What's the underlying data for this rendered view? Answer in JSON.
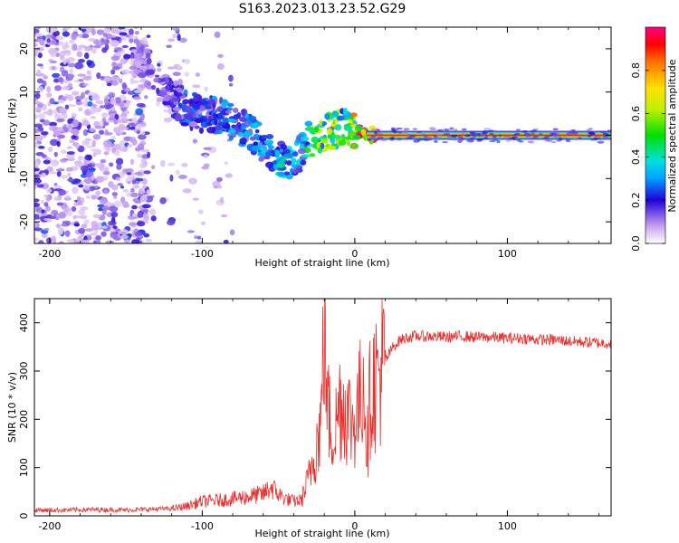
{
  "title": "S163.2023.013.23.52.G29",
  "colorbar": {
    "label": "Normalized spectral amplitude",
    "ticks": [
      "0.0",
      "0.2",
      "0.4",
      "0.6",
      "0.8"
    ],
    "tick_values": [
      0.0,
      0.2,
      0.4,
      0.6,
      0.8
    ],
    "range": [
      0.0,
      1.0
    ]
  },
  "chart_data": [
    {
      "type": "heatmap",
      "xlabel": "Height of straight line (km)",
      "ylabel": "Frequency (Hz)",
      "xlim": [
        -210,
        168
      ],
      "ylim": [
        -25,
        25
      ],
      "xticks": [
        -200,
        -100,
        0,
        100
      ],
      "yticks": [
        -20,
        -10,
        0,
        10,
        20
      ],
      "ridge": [
        {
          "x": -140,
          "y": 17,
          "v": 0.12
        },
        {
          "x": -130,
          "y": 13,
          "v": 0.15
        },
        {
          "x": -120,
          "y": 9,
          "v": 0.18
        },
        {
          "x": -110,
          "y": 6,
          "v": 0.25
        },
        {
          "x": -100,
          "y": 5,
          "v": 0.22
        },
        {
          "x": -90,
          "y": 5,
          "v": 0.28
        },
        {
          "x": -80,
          "y": 3,
          "v": 0.3
        },
        {
          "x": -70,
          "y": 1,
          "v": 0.28
        },
        {
          "x": -60,
          "y": -2,
          "v": 0.3
        },
        {
          "x": -50,
          "y": -5,
          "v": 0.35
        },
        {
          "x": -45,
          "y": -6,
          "v": 0.42
        },
        {
          "x": -40,
          "y": -6,
          "v": 0.35
        },
        {
          "x": -35,
          "y": -4,
          "v": 0.3
        },
        {
          "x": -30,
          "y": -1,
          "v": 0.5
        },
        {
          "x": -25,
          "y": 0,
          "v": 0.55
        },
        {
          "x": -15,
          "y": 1,
          "v": 0.7
        },
        {
          "x": -5,
          "y": 2,
          "v": 0.45
        },
        {
          "x": 0,
          "y": 1,
          "v": 0.85
        },
        {
          "x": 10,
          "y": 0,
          "v": 0.9
        },
        {
          "x": 168,
          "y": 0,
          "v": 0.9
        }
      ]
    },
    {
      "type": "line",
      "xlabel": "Height of straight line (km)",
      "ylabel": "SNR (10 * v/v)",
      "xlim": [
        -210,
        168
      ],
      "ylim": [
        0,
        450
      ],
      "xticks": [
        -200,
        -100,
        0,
        100
      ],
      "yticks": [
        0,
        100,
        200,
        300,
        400
      ],
      "series": [
        {
          "color": "#e8302e",
          "x": [
            -210,
            -190,
            -170,
            -150,
            -130,
            -120,
            -110,
            -100,
            -90,
            -80,
            -70,
            -60,
            -55,
            -50,
            -45,
            -40,
            -35,
            -32,
            -30,
            -28,
            -25,
            -22,
            -20,
            -18,
            -15,
            -12,
            -10,
            -8,
            -5,
            -2,
            0,
            3,
            6,
            8,
            10,
            12,
            15,
            20,
            25,
            30,
            35,
            40,
            50,
            60,
            70,
            80,
            90,
            100,
            110,
            120,
            130,
            140,
            150,
            160,
            168
          ],
          "y": [
            12,
            12,
            13,
            12,
            14,
            15,
            20,
            30,
            32,
            35,
            40,
            45,
            60,
            45,
            35,
            30,
            32,
            60,
            80,
            110,
            150,
            200,
            420,
            230,
            170,
            190,
            240,
            230,
            220,
            190,
            200,
            230,
            300,
            130,
            250,
            270,
            290,
            320,
            350,
            365,
            370,
            372,
            372,
            370,
            372,
            370,
            370,
            368,
            368,
            365,
            365,
            362,
            360,
            358,
            358
          ]
        }
      ]
    }
  ]
}
